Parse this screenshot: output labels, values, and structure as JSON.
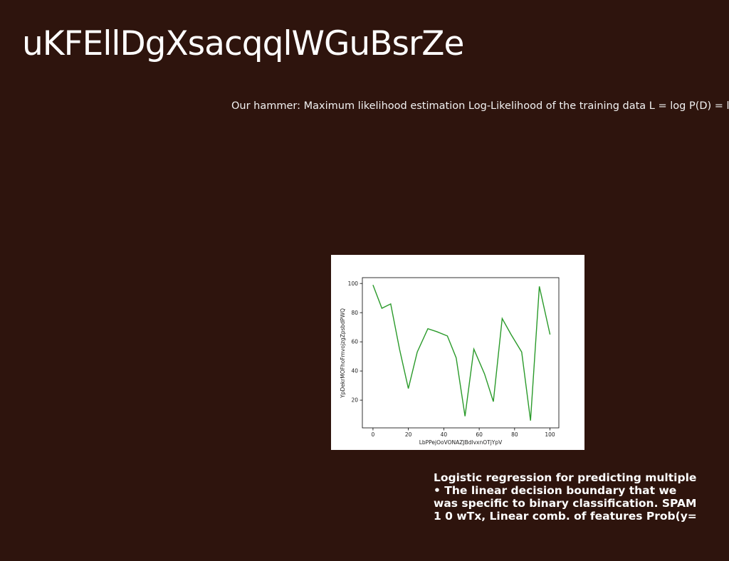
{
  "slide": {
    "title": "uKFEllDgXsacqqlWGuBsrZe",
    "subtitle": "Our hammer: Maximum likelihood estimation Log-Likelihood of the training data L = log P(D) = log",
    "body_lines": [
      "Logistic regression for predicting multiple",
      "• The linear decision boundary that we",
      "was specific to binary classification. SPAM",
      "1 0 wTx, Linear comb. of features Prob(y="
    ],
    "background_color": "#2e140d"
  },
  "chart_data": {
    "type": "line",
    "xlabel": "LbPPejOoVONAZJBdlvxnOTjYpV",
    "ylabel": "YpDekrMOFhoFmvojzgZpsbdPWQ",
    "xlim": [
      -6,
      105
    ],
    "ylim": [
      1,
      104
    ],
    "xticks": [
      0,
      20,
      40,
      60,
      80,
      100
    ],
    "yticks": [
      20,
      40,
      60,
      80,
      100
    ],
    "grid": false,
    "series": [
      {
        "color": "#2a9a2a",
        "x": [
          0,
          5,
          10,
          15,
          20,
          25,
          31,
          36,
          42,
          47,
          52,
          57,
          63,
          68,
          73,
          78,
          84,
          89,
          94,
          100
        ],
        "y": [
          99,
          83,
          86,
          55,
          28,
          53,
          69,
          67,
          64,
          49,
          9,
          55,
          38,
          19,
          76,
          65,
          53,
          6,
          98,
          65
        ]
      }
    ]
  }
}
